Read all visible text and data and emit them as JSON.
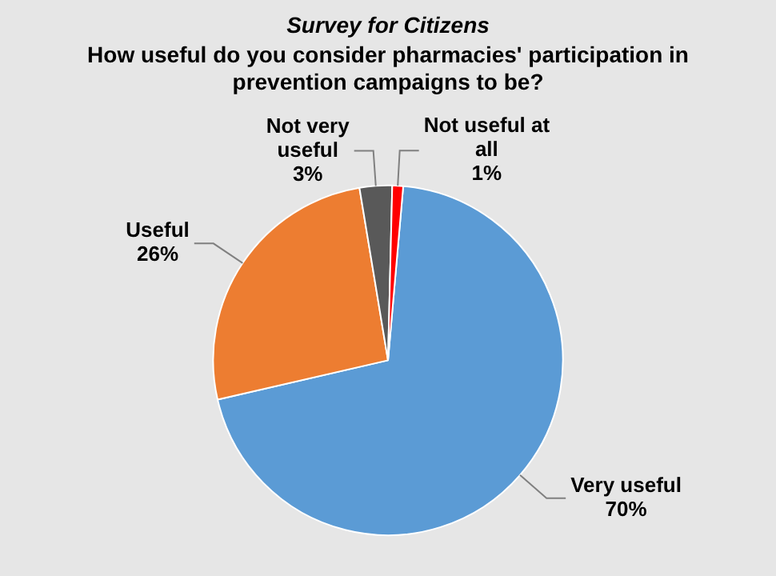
{
  "chart_data": {
    "type": "pie",
    "title": "Survey for Citizens",
    "subtitle": "How useful do you consider pharmacies' participation in prevention campaigns to be?",
    "categories": [
      "Very useful",
      "Useful",
      "Not very useful",
      "Not useful at all"
    ],
    "values": [
      70,
      26,
      3,
      1
    ],
    "colors": [
      "#5b9bd5",
      "#ed7d31",
      "#595959",
      "#ff0000"
    ],
    "value_labels": [
      "70%",
      "26%",
      "3%",
      "1%"
    ],
    "legend": false
  }
}
